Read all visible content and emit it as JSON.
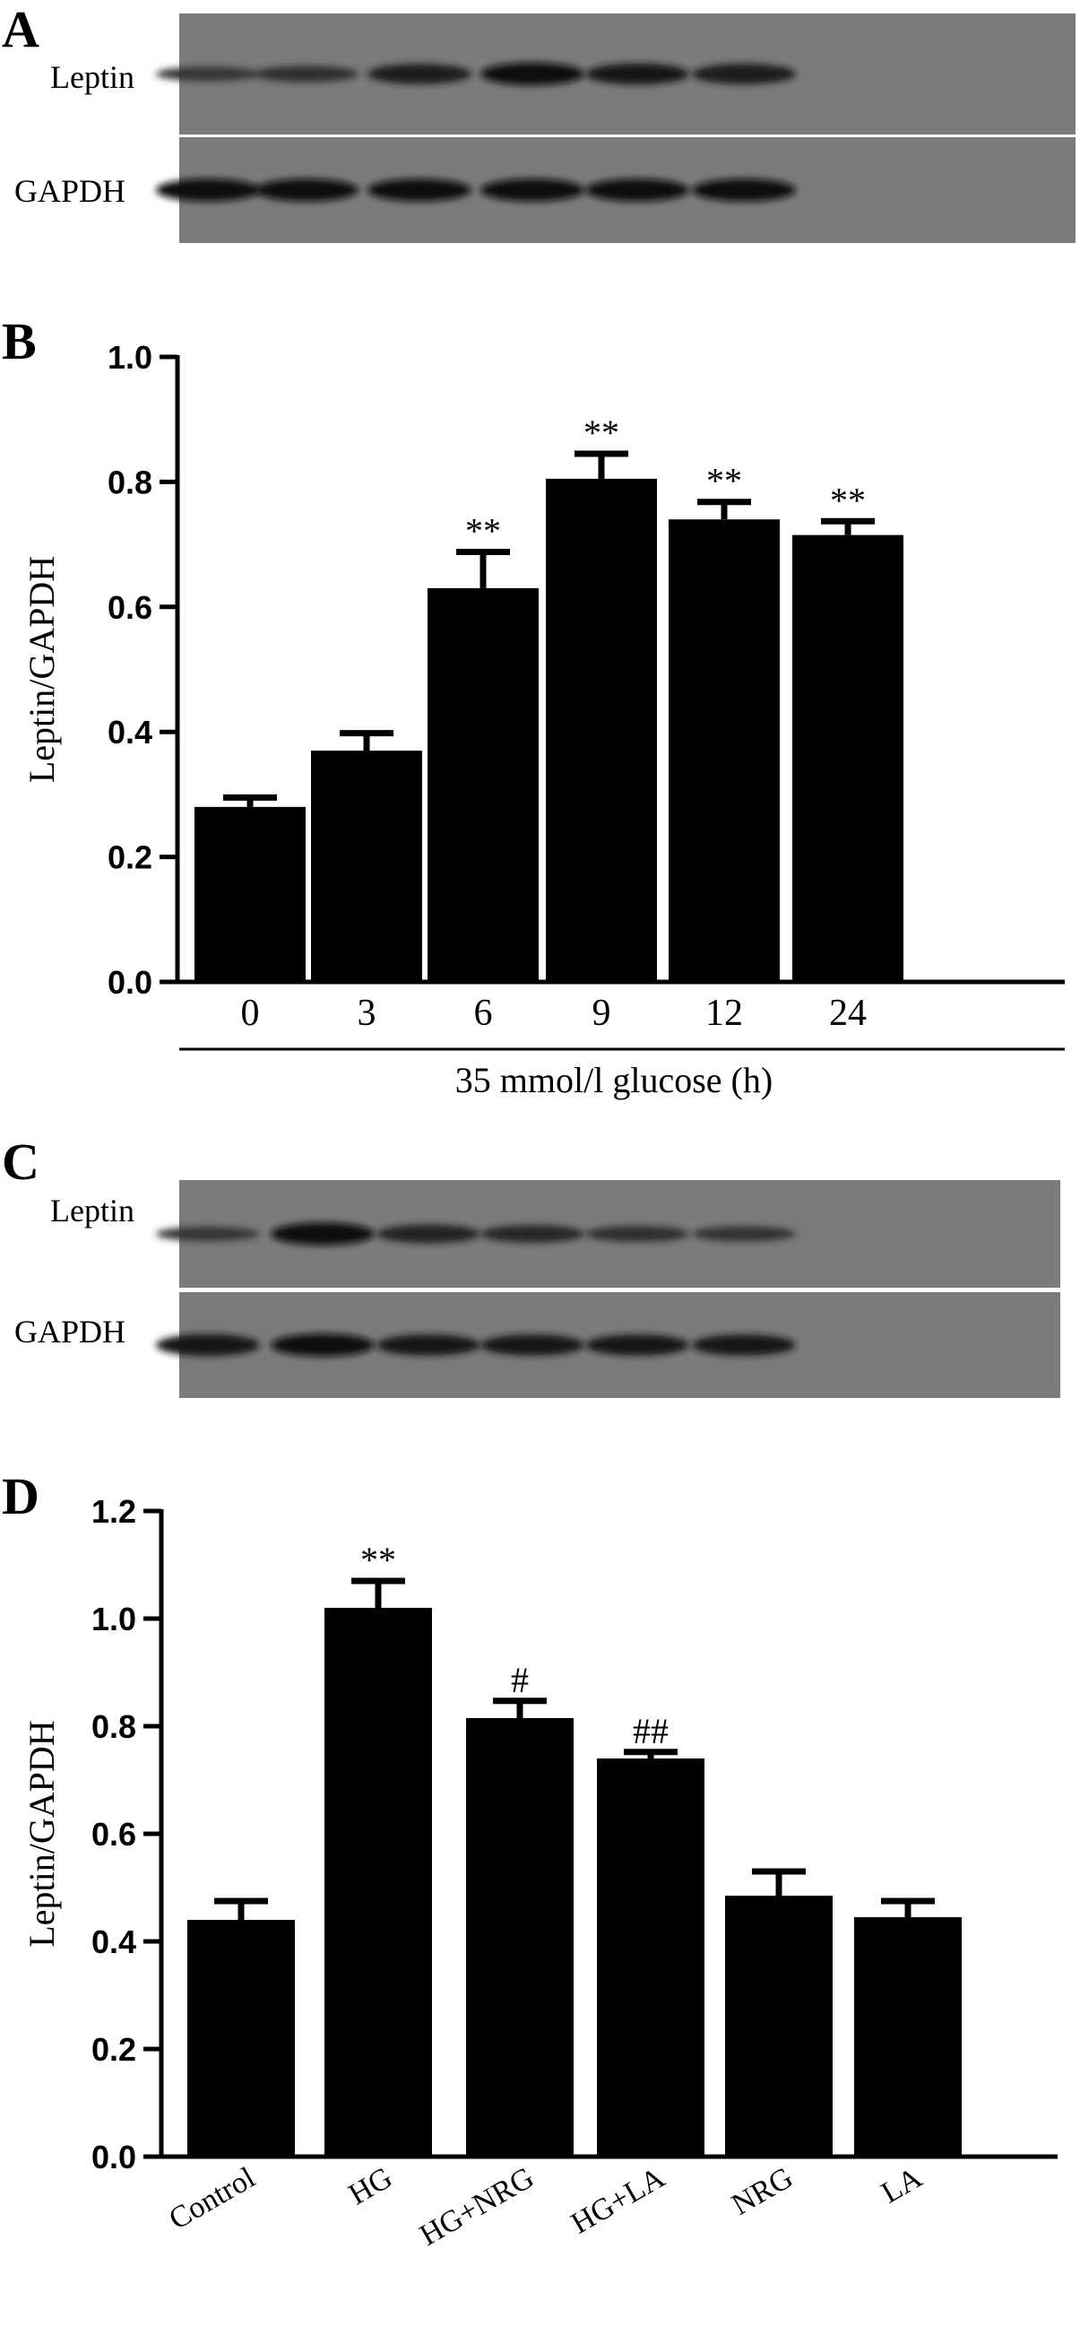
{
  "panels": {
    "A": {
      "letter": "A",
      "rows": [
        {
          "label": "Leptin",
          "band_intensity": [
            0.35,
            0.45,
            0.7,
            0.85,
            0.75,
            0.72
          ]
        },
        {
          "label": "GAPDH",
          "band_intensity": [
            0.85,
            0.85,
            0.85,
            0.85,
            0.85,
            0.85
          ]
        }
      ]
    },
    "C": {
      "letter": "C",
      "rows": [
        {
          "label": "Leptin",
          "band_intensity": [
            0.35,
            0.85,
            0.6,
            0.55,
            0.45,
            0.4
          ]
        },
        {
          "label": "GAPDH",
          "band_intensity": [
            0.8,
            0.85,
            0.75,
            0.75,
            0.75,
            0.75
          ]
        }
      ]
    }
  },
  "chart_data": [
    {
      "id": "B",
      "letter": "B",
      "type": "bar",
      "categories": [
        "0",
        "3",
        "6",
        "9",
        "12",
        "24"
      ],
      "values": [
        0.28,
        0.37,
        0.63,
        0.805,
        0.74,
        0.715
      ],
      "errors": [
        0.015,
        0.028,
        0.058,
        0.04,
        0.028,
        0.022
      ],
      "annotations": [
        "",
        "",
        "**",
        "**",
        "**",
        "**"
      ],
      "ylabel": "Leptin/GAPDH",
      "xlabel": "35 mmol/l  glucose (h)",
      "ylim": [
        0,
        1.0
      ],
      "yticks": [
        "0.0",
        "0.2",
        "0.4",
        "0.6",
        "0.8",
        "1.0"
      ],
      "bar_color": "#000000"
    },
    {
      "id": "D",
      "letter": "D",
      "type": "bar",
      "categories": [
        "Control",
        "HG",
        "HG+NRG",
        "HG+LA",
        "NRG",
        "LA"
      ],
      "values": [
        0.44,
        1.02,
        0.815,
        0.74,
        0.485,
        0.445
      ],
      "errors": [
        0.035,
        0.05,
        0.032,
        0.012,
        0.045,
        0.03
      ],
      "annotations": [
        "",
        "**",
        "#",
        "##",
        "",
        ""
      ],
      "ylabel": "Leptin/GAPDH",
      "xlabel": "",
      "ylim": [
        0,
        1.2
      ],
      "yticks": [
        "0.0",
        "0.2",
        "0.4",
        "0.6",
        "0.8",
        "1.0",
        "1.2"
      ],
      "bar_color": "#000000"
    }
  ]
}
